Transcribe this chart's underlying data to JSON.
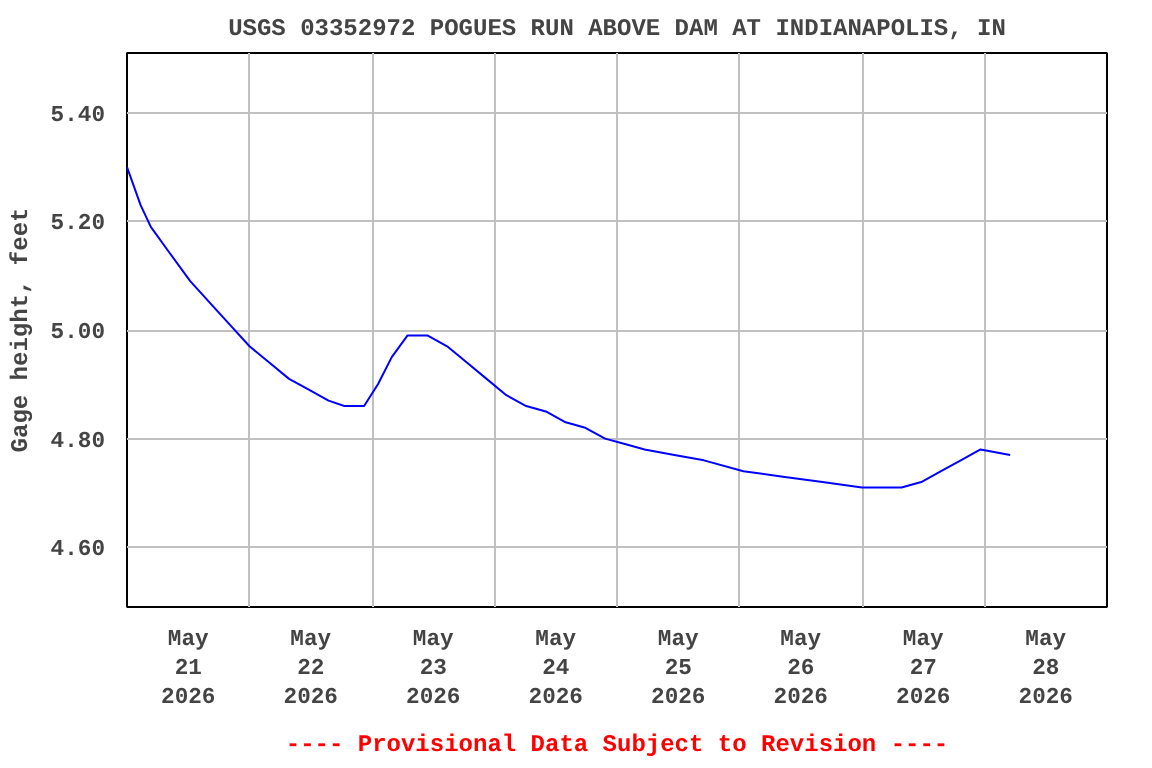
{
  "chart_data": {
    "type": "line",
    "title": "USGS 03352972 POGUES RUN ABOVE DAM AT INDIANAPOLIS, IN",
    "ylabel": "Gage height, feet",
    "annotations": [
      "---- Provisional Data Subject to Revision ----"
    ],
    "x": [
      "2026-05-21T00:00",
      "2026-05-21T02:40",
      "2026-05-21T04:40",
      "2026-05-21T08:30",
      "2026-05-21T12:23",
      "2026-05-21T16:15",
      "2026-05-21T20:08",
      "2026-05-22T00:00",
      "2026-05-22T03:52",
      "2026-05-22T07:45",
      "2026-05-22T11:37",
      "2026-05-22T15:29",
      "2026-05-22T18:35",
      "2026-05-22T22:27",
      "2026-05-23T01:10",
      "2026-05-23T03:52",
      "2026-05-23T06:58",
      "2026-05-23T10:51",
      "2026-05-23T14:43",
      "2026-05-23T18:35",
      "2026-05-23T22:27",
      "2026-05-24T02:19",
      "2026-05-24T06:12",
      "2026-05-24T10:04",
      "2026-05-24T13:56",
      "2026-05-24T17:48",
      "2026-05-24T21:40",
      "2026-05-25T01:33",
      "2026-05-25T05:25",
      "2026-05-25T11:14",
      "2026-05-25T17:02",
      "2026-05-26T00:46",
      "2026-05-26T08:31",
      "2026-05-26T16:15",
      "2026-05-27T00:00",
      "2026-05-27T07:45",
      "2026-05-27T11:37",
      "2026-05-27T15:29",
      "2026-05-27T19:21",
      "2026-05-27T23:13",
      "2026-05-28T05:02"
    ],
    "series": [
      {
        "color": "#0000ff",
        "values": [
          5.3,
          5.23,
          5.19,
          5.14,
          5.09,
          5.05,
          5.01,
          4.97,
          4.94,
          4.91,
          4.89,
          4.87,
          4.86,
          4.86,
          4.9,
          4.95,
          4.99,
          4.99,
          4.97,
          4.94,
          4.91,
          4.88,
          4.86,
          4.85,
          4.83,
          4.82,
          4.8,
          4.79,
          4.78,
          4.77,
          4.76,
          4.74,
          4.73,
          4.72,
          4.71,
          4.71,
          4.72,
          4.74,
          4.76,
          4.78,
          4.77
        ]
      }
    ],
    "xlim": [
      "2026-05-21",
      "2026-05-29"
    ],
    "xticks": [
      {
        "value": "2026-05-21T12:00",
        "label": "May\n21\n2026"
      },
      {
        "value": "2026-05-22T12:00",
        "label": "May\n22\n2026"
      },
      {
        "value": "2026-05-23T12:00",
        "label": "May\n23\n2026"
      },
      {
        "value": "2026-05-24T12:00",
        "label": "May\n24\n2026"
      },
      {
        "value": "2026-05-25T12:00",
        "label": "May\n25\n2026"
      },
      {
        "value": "2026-05-26T12:00",
        "label": "May\n26\n2026"
      },
      {
        "value": "2026-05-27T12:00",
        "label": "May\n27\n2026"
      },
      {
        "value": "2026-05-28T12:00",
        "label": "May\n28\n2026"
      },
      {
        "value": "2026-05-22",
        "label": null
      },
      {
        "value": "2026-05-23",
        "label": null
      },
      {
        "value": "2026-05-24",
        "label": null
      },
      {
        "value": "2026-05-25",
        "label": null
      },
      {
        "value": "2026-05-26",
        "label": null
      },
      {
        "value": "2026-05-27",
        "label": null
      },
      {
        "value": "2026-05-28",
        "label": null
      }
    ],
    "ylim": [
      4.49,
      5.51
    ],
    "yticks": [
      {
        "value": 4.6,
        "label": "4.60"
      },
      {
        "value": 4.8,
        "label": "4.80"
      },
      {
        "value": 5.0,
        "label": "5.00"
      },
      {
        "value": 5.2,
        "label": "5.20"
      },
      {
        "value": 5.4,
        "label": "5.40"
      }
    ],
    "grid": true,
    "line_style": "solid",
    "marker": "none"
  }
}
